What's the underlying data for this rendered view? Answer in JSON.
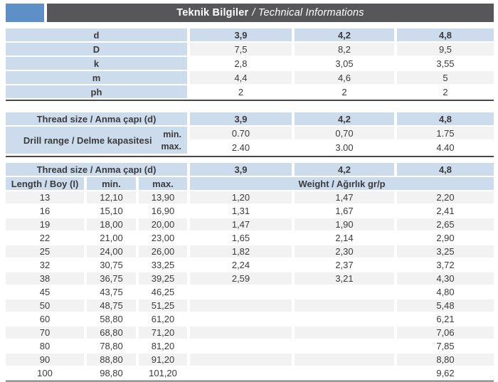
{
  "header": {
    "title_main": "Teknik Bilgiler",
    "title_rest": "/ Technical Informations"
  },
  "colors": {
    "accent_square": "#5e90c8",
    "title_band": "#575759",
    "cell_blue": "#ccdced",
    "stripe_gray": "#f2f2f2",
    "separator": "#48484a",
    "text": "#3b3b3d"
  },
  "table1": {
    "rows": [
      {
        "label": "d",
        "values": [
          "3,9",
          "4,2",
          "4,8"
        ]
      },
      {
        "label": "D",
        "values": [
          "7,5",
          "8,2",
          "9,5"
        ]
      },
      {
        "label": "k",
        "values": [
          "2,8",
          "3,05",
          "3,55"
        ]
      },
      {
        "label": "m",
        "values": [
          "4,4",
          "4,6",
          "5"
        ]
      },
      {
        "label": "ph",
        "values": [
          "2",
          "2",
          "2"
        ]
      }
    ]
  },
  "table2": {
    "header_label": "Thread size / Anma çapı (d)",
    "sizes": [
      "3,9",
      "4,2",
      "4,8"
    ],
    "range_label": "Drill range / Delme kapasitesi",
    "min_label": "min.",
    "max_label": "max.",
    "min_values": [
      "0.70",
      "0,70",
      "1.75"
    ],
    "max_values": [
      "2.40",
      "3.00",
      "4.40"
    ]
  },
  "table3": {
    "header_label": "Thread size / Anma çapı (d)",
    "sizes": [
      "3,9",
      "4,2",
      "4,8"
    ],
    "length_label": "Length / Boy (I)",
    "min_label": "min.",
    "max_label": "max.",
    "weight_label": "Weight / Ağırlık gr/p",
    "rows": [
      [
        "13",
        "12,10",
        "13,90",
        "1,20",
        "1,47",
        "2,20"
      ],
      [
        "16",
        "15,10",
        "16,90",
        "1,31",
        "1,67",
        "2,41"
      ],
      [
        "19",
        "18,00",
        "20,00",
        "1,47",
        "1,90",
        "2,65"
      ],
      [
        "22",
        "21,00",
        "23,00",
        "1,65",
        "2,14",
        "2,90"
      ],
      [
        "25",
        "24,00",
        "26,00",
        "1,82",
        "2,30",
        "3,25"
      ],
      [
        "32",
        "30,75",
        "33,25",
        "2,24",
        "2,37",
        "3,72"
      ],
      [
        "38",
        "36,75",
        "39,25",
        "2,59",
        "3,21",
        "4,30"
      ],
      [
        "45",
        "43,75",
        "46,25",
        "",
        "",
        "4,80"
      ],
      [
        "50",
        "48,75",
        "51,25",
        "",
        "",
        "5,48"
      ],
      [
        "60",
        "58,80",
        "61,20",
        "",
        "",
        "6,21"
      ],
      [
        "70",
        "68,80",
        "71,20",
        "",
        "",
        "7,06"
      ],
      [
        "80",
        "78,80",
        "81,20",
        "",
        "",
        "7,85"
      ],
      [
        "90",
        "88,80",
        "91,20",
        "",
        "",
        "8,80"
      ],
      [
        "100",
        "98,80",
        "101,20",
        "",
        "",
        "9,62"
      ]
    ]
  }
}
